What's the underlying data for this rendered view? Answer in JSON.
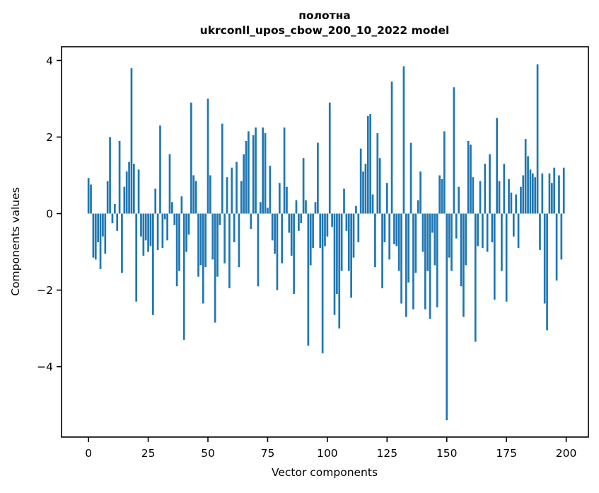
{
  "chart_data": {
    "type": "bar",
    "title": "полотна",
    "subtitle": "ukrconll_upos_cbow_200_10_2022 model",
    "xlabel": "Vector components",
    "ylabel": "Components values",
    "bar_color": "#1f77b4",
    "axis_color": "#000000",
    "background_color": "#ffffff",
    "legend": "none",
    "grid": false,
    "xticks": [
      0,
      25,
      50,
      75,
      100,
      125,
      150,
      175,
      200
    ],
    "yticks": [
      -4,
      -2,
      0,
      2,
      4
    ],
    "xlim": [
      -11.3,
      209.3
    ],
    "ylim": [
      -5.84,
      4.36
    ],
    "n_bars": 200,
    "values": [
      0.93,
      0.76,
      -1.15,
      -1.2,
      -0.75,
      -1.45,
      -0.6,
      -1.05,
      0.85,
      2.0,
      -0.25,
      0.25,
      -0.45,
      1.9,
      -1.55,
      0.7,
      1.1,
      1.35,
      3.8,
      1.3,
      -2.3,
      1.15,
      -0.6,
      -1.1,
      -0.7,
      -1.0,
      -0.85,
      -2.65,
      0.65,
      -0.95,
      2.3,
      -0.9,
      -0.15,
      -0.7,
      1.55,
      0.3,
      -0.3,
      -1.9,
      -1.5,
      0.45,
      -3.3,
      -1.0,
      -0.55,
      2.9,
      1.0,
      0.85,
      -1.65,
      -1.35,
      -2.35,
      -1.4,
      3.0,
      1.0,
      -1.2,
      -2.85,
      -1.65,
      -0.3,
      2.35,
      -1.3,
      0.95,
      -1.95,
      1.2,
      -0.75,
      1.35,
      -1.4,
      0.85,
      1.55,
      1.9,
      2.15,
      -0.4,
      2.05,
      2.25,
      -1.9,
      0.3,
      2.25,
      2.1,
      0.15,
      1.25,
      -0.7,
      -1.05,
      -2.0,
      0.8,
      -1.3,
      2.25,
      0.7,
      -0.5,
      -1.1,
      -2.1,
      0.35,
      -0.45,
      -0.25,
      1.45,
      0.35,
      -3.45,
      -1.35,
      -0.9,
      0.3,
      1.85,
      -0.9,
      -3.65,
      -0.85,
      -0.6,
      2.9,
      -0.35,
      -2.65,
      -2.1,
      -3.0,
      -1.5,
      0.65,
      -0.45,
      -1.5,
      -2.2,
      -1.15,
      0.2,
      -0.75,
      1.7,
      1.1,
      1.3,
      2.55,
      2.6,
      0.5,
      -1.4,
      2.1,
      1.45,
      -1.95,
      -0.75,
      0.8,
      -1.2,
      3.45,
      -0.8,
      -0.85,
      -1.5,
      -2.35,
      3.85,
      -2.7,
      -1.8,
      1.85,
      -2.5,
      -1.55,
      0.35,
      1.1,
      -1.0,
      -2.5,
      -1.5,
      -2.75,
      -0.5,
      -1.35,
      -2.45,
      1.0,
      0.9,
      2.15,
      -5.4,
      -1.15,
      -1.5,
      3.3,
      -0.65,
      0.7,
      -1.9,
      -2.7,
      -1.35,
      1.9,
      1.8,
      0.95,
      -3.35,
      -0.85,
      0.85,
      -0.9,
      1.3,
      -1.0,
      1.55,
      -0.75,
      -2.25,
      2.5,
      0.85,
      -1.5,
      1.3,
      -2.3,
      0.9,
      0.55,
      -0.6,
      0.5,
      -0.9,
      0.7,
      1.0,
      1.95,
      1.5,
      1.15,
      1.05,
      0.95,
      3.9,
      -0.95,
      1.05,
      -2.35,
      -3.05,
      1.05,
      0.8,
      1.2,
      -1.75,
      1.0,
      -1.2,
      1.2
    ]
  }
}
